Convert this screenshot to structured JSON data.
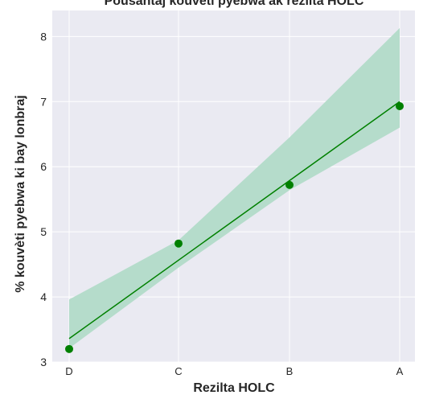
{
  "chart_data": {
    "type": "scatter",
    "title": "Pousantaj kouvèti pyebwa ak rezilta HOLC",
    "xlabel": "Rezilta HOLC",
    "ylabel": "% kouvèti pyebwa ki bay lonbraj",
    "categories": [
      "D",
      "C",
      "B",
      "A"
    ],
    "ylim": [
      3,
      8.4
    ],
    "yticks": [
      3,
      4,
      5,
      6,
      7,
      8
    ],
    "points": [
      {
        "category": "D",
        "y": 3.2
      },
      {
        "category": "C",
        "y": 4.82
      },
      {
        "category": "B",
        "y": 5.72
      },
      {
        "category": "A",
        "y": 6.93
      }
    ],
    "fit_line": {
      "start": 3.36,
      "end": 7.0
    },
    "confidence_band": {
      "upper": [
        3.96,
        4.87,
        6.45,
        8.13
      ],
      "lower": [
        3.21,
        4.45,
        5.64,
        6.6
      ]
    },
    "grid": true,
    "colors": {
      "background": "#eaeaf2",
      "grid": "#ffffff",
      "point": "#008000",
      "line": "#008000",
      "band": "#b5dccb",
      "text": "#262626"
    }
  }
}
